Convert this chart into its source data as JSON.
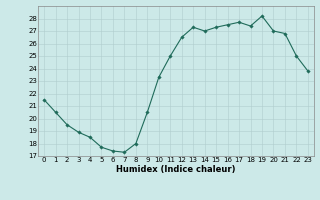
{
  "x": [
    0,
    1,
    2,
    3,
    4,
    5,
    6,
    7,
    8,
    9,
    10,
    11,
    12,
    13,
    14,
    15,
    16,
    17,
    18,
    19,
    20,
    21,
    22,
    23
  ],
  "y": [
    21.5,
    20.5,
    19.5,
    18.9,
    18.5,
    17.7,
    17.4,
    17.3,
    18.0,
    20.5,
    23.3,
    25.0,
    26.5,
    27.3,
    27.0,
    27.3,
    27.5,
    27.7,
    27.4,
    28.2,
    27.0,
    26.8,
    25.0,
    23.8
  ],
  "xlabel": "Humidex (Indice chaleur)",
  "xlim": [
    -0.5,
    23.5
  ],
  "ylim": [
    17,
    29
  ],
  "yticks": [
    17,
    18,
    19,
    20,
    21,
    22,
    23,
    24,
    25,
    26,
    27,
    28
  ],
  "xticks": [
    0,
    1,
    2,
    3,
    4,
    5,
    6,
    7,
    8,
    9,
    10,
    11,
    12,
    13,
    14,
    15,
    16,
    17,
    18,
    19,
    20,
    21,
    22,
    23
  ],
  "line_color": "#1f6b5a",
  "marker": "D",
  "marker_size": 1.8,
  "line_width": 0.8,
  "bg_color": "#cce9e8",
  "grid_color": "#b0cece",
  "fig_bg": "#cce9e8",
  "tick_fontsize": 5.0,
  "xlabel_fontsize": 6.0
}
